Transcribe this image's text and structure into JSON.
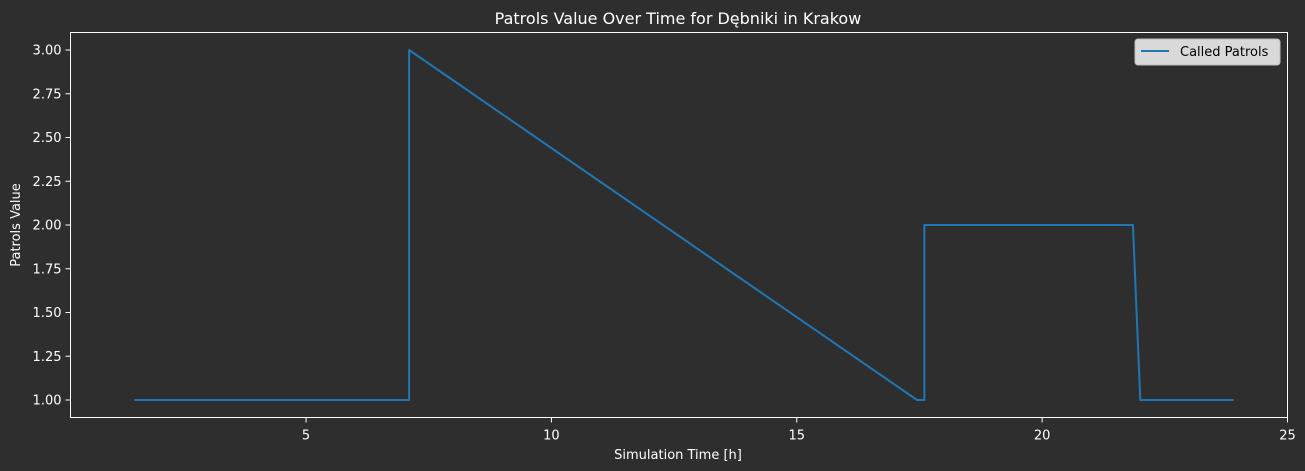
{
  "chart_data": {
    "type": "line",
    "title": "Patrols Value Over Time for Dębniki in Krakow",
    "xlabel": "Simulation Time [h]",
    "ylabel": "Patrols Value",
    "xlim": [
      0.2,
      25
    ],
    "ylim": [
      0.9,
      3.1
    ],
    "xticks": [
      5,
      10,
      15,
      20,
      25
    ],
    "xtick_labels": [
      "5",
      "10",
      "15",
      "20",
      "25"
    ],
    "yticks": [
      1.0,
      1.25,
      1.5,
      1.75,
      2.0,
      2.25,
      2.5,
      2.75,
      3.0
    ],
    "ytick_labels": [
      "1.00",
      "1.25",
      "1.50",
      "1.75",
      "2.00",
      "2.25",
      "2.50",
      "2.75",
      "3.00"
    ],
    "grid": false,
    "legend_position": "top-right",
    "series": [
      {
        "name": "Called Patrols",
        "color": "#1f77b4",
        "x": [
          1.5,
          7.1,
          7.1,
          17.45,
          17.6,
          17.6,
          21.85,
          22.0,
          23.9
        ],
        "y": [
          1.0,
          1.0,
          3.0,
          1.0,
          1.0,
          2.0,
          2.0,
          1.0,
          1.0
        ]
      }
    ]
  },
  "colors": {
    "background": "#2e2e2e",
    "axes": "#ffffff",
    "text": "#ffffff",
    "legend_background": "#d9d9d9",
    "legend_text": "#000000"
  }
}
